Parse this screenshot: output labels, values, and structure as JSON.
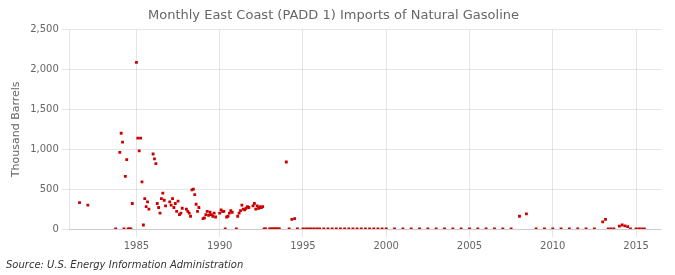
{
  "chart_data": {
    "type": "scatter",
    "title": "Monthly East Coast (PADD 1) Imports of Natural Gasoline",
    "ylabel": "Thousand Barrels",
    "annotations": [
      "Source: U.S. Energy Information Administration"
    ],
    "color": "#CC0000",
    "marker": "square",
    "grid": true,
    "xlim": [
      1981.0,
      2016.5
    ],
    "xticks": [
      1985,
      1990,
      1995,
      2000,
      2005,
      2010,
      2015
    ],
    "ylim": [
      0,
      2500
    ],
    "yticks": [
      0,
      500,
      {
        "value": 1000,
        "label": "1,000"
      },
      {
        "value": 1500,
        "label": "1,500"
      },
      {
        "value": 2000,
        "label": "2,000"
      },
      {
        "value": 2500,
        "label": "2,500"
      }
    ],
    "x": [
      1981.583,
      1982.083,
      1983.75,
      1984.0,
      1984.083,
      1984.167,
      1984.25,
      1984.333,
      1984.417,
      1984.5,
      1984.583,
      1984.667,
      1984.75,
      1985.0,
      1985.083,
      1985.167,
      1985.25,
      1985.333,
      1985.417,
      1985.5,
      1985.583,
      1985.667,
      1985.75,
      1986.0,
      1986.083,
      1986.167,
      1986.25,
      1986.333,
      1986.417,
      1986.5,
      1986.583,
      1986.667,
      1986.75,
      1987.0,
      1987.083,
      1987.167,
      1987.25,
      1987.333,
      1987.417,
      1987.5,
      1987.583,
      1987.667,
      1987.75,
      1988.0,
      1988.083,
      1988.167,
      1988.25,
      1988.333,
      1988.417,
      1988.5,
      1988.583,
      1988.667,
      1988.75,
      1989.0,
      1989.083,
      1989.167,
      1989.25,
      1989.333,
      1989.417,
      1989.5,
      1989.583,
      1989.667,
      1989.75,
      1990.0,
      1990.083,
      1990.167,
      1990.25,
      1990.333,
      1990.417,
      1990.5,
      1990.583,
      1990.667,
      1990.75,
      1991.0,
      1991.083,
      1991.167,
      1991.25,
      1991.333,
      1991.417,
      1991.5,
      1991.583,
      1991.667,
      1991.75,
      1992.0,
      1992.083,
      1992.167,
      1992.25,
      1992.333,
      1992.417,
      1992.5,
      1992.583,
      1992.667,
      1992.75,
      1993.0,
      1993.083,
      1993.167,
      1993.25,
      1993.333,
      1993.417,
      1993.5,
      1993.583,
      1994.0,
      1994.167,
      1994.333,
      1994.5,
      1994.667,
      1995.0,
      1995.167,
      1995.333,
      1995.5,
      1995.667,
      1995.833,
      1996.0,
      1996.25,
      1996.5,
      1996.75,
      1997.0,
      1997.25,
      1997.5,
      1997.75,
      1998.0,
      1998.25,
      1998.5,
      1998.75,
      1999.0,
      1999.25,
      1999.5,
      1999.75,
      2000.0,
      2000.5,
      2001.0,
      2001.5,
      2002.0,
      2002.5,
      2003.0,
      2003.5,
      2004.0,
      2004.5,
      2005.0,
      2005.5,
      2006.0,
      2006.5,
      2007.0,
      2007.5,
      2008.0,
      2008.417,
      2009.0,
      2009.5,
      2010.0,
      2010.5,
      2011.0,
      2011.5,
      2012.0,
      2012.5,
      2013.0,
      2013.167,
      2013.333,
      2013.5,
      2013.667,
      2014.0,
      2014.167,
      2014.333,
      2014.5,
      2014.667,
      2015.0,
      2015.167,
      2015.333,
      2015.5
    ],
    "values": [
      330,
      300,
      0,
      960,
      1200,
      1090,
      0,
      660,
      870,
      0,
      0,
      0,
      320,
      2090,
      1140,
      980,
      1140,
      590,
      50,
      380,
      280,
      340,
      250,
      940,
      880,
      820,
      320,
      270,
      200,
      380,
      450,
      360,
      290,
      340,
      300,
      380,
      270,
      320,
      220,
      350,
      180,
      200,
      260,
      250,
      220,
      200,
      160,
      490,
      500,
      430,
      310,
      220,
      270,
      130,
      140,
      180,
      220,
      170,
      210,
      180,
      160,
      200,
      150,
      200,
      240,
      220,
      220,
      0,
      150,
      160,
      200,
      230,
      210,
      0,
      160,
      200,
      230,
      300,
      250,
      240,
      260,
      280,
      270,
      290,
      320,
      250,
      290,
      260,
      280,
      270,
      280,
      0,
      0,
      0,
      0,
      0,
      0,
      0,
      0,
      0,
      0,
      840,
      0,
      120,
      130,
      0,
      0,
      0,
      0,
      0,
      0,
      0,
      0,
      0,
      0,
      0,
      0,
      0,
      0,
      0,
      0,
      0,
      0,
      0,
      0,
      0,
      0,
      0,
      0,
      0,
      0,
      0,
      0,
      0,
      0,
      0,
      0,
      0,
      0,
      0,
      0,
      0,
      0,
      0,
      160,
      190,
      0,
      0,
      0,
      0,
      0,
      0,
      0,
      0,
      90,
      120,
      0,
      0,
      0,
      35,
      50,
      40,
      30,
      0,
      0,
      0,
      0,
      0
    ]
  }
}
